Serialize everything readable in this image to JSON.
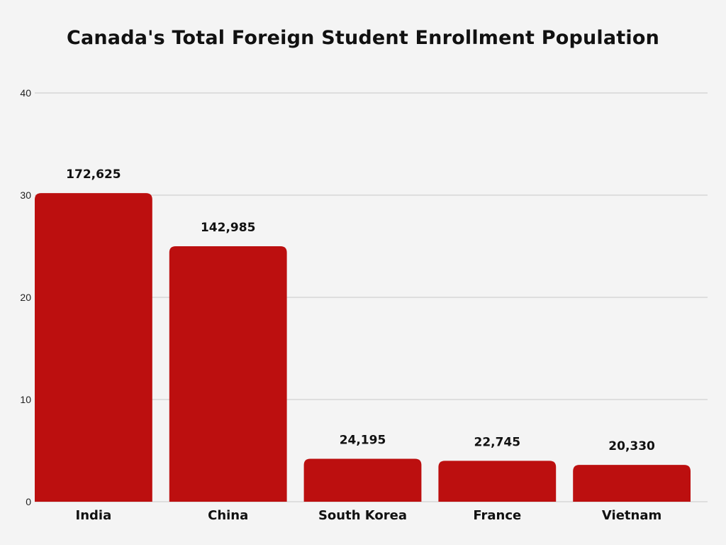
{
  "colors": {
    "background": "#f4f4f4",
    "bar": "#bc0f0f",
    "grid": "#c8c8c8"
  },
  "chart_data": {
    "type": "bar",
    "title": "Canada's Total Foreign Student Enrollment Population",
    "categories": [
      "India",
      "China",
      "South Korea",
      "France",
      "Vietnam"
    ],
    "values": [
      30.2,
      25.0,
      4.2,
      4.0,
      3.6
    ],
    "data_labels": [
      "172,625",
      "142,985",
      "24,195",
      "22,745",
      "20,330"
    ],
    "y_ticks": [
      "0",
      "10",
      "20",
      "30",
      "40"
    ],
    "ylim": [
      0,
      40
    ],
    "xlabel": "",
    "ylabel": "",
    "grid": true,
    "legend": "none"
  }
}
